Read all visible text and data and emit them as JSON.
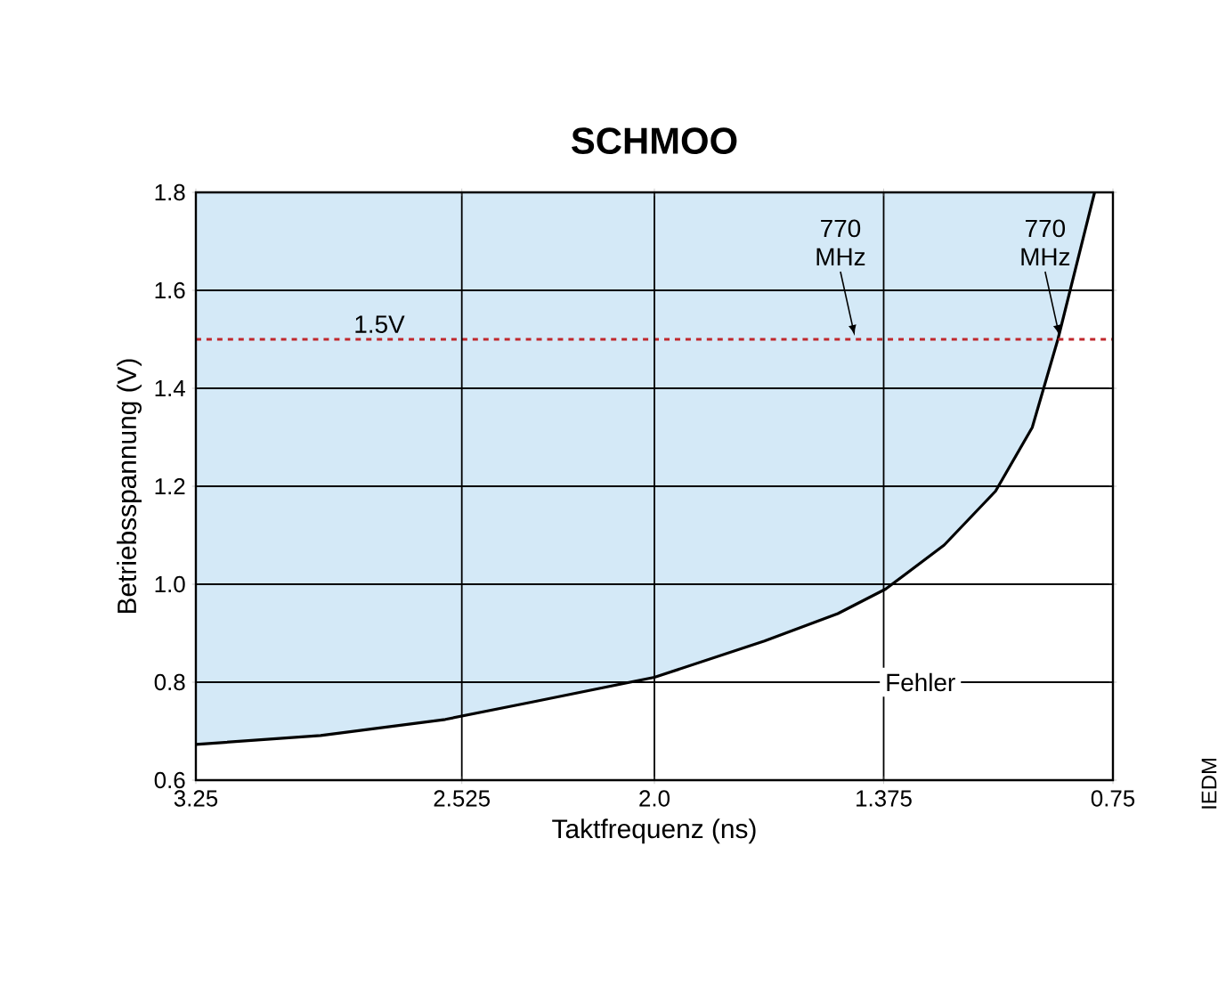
{
  "chart_data": {
    "type": "line",
    "title": "SCHMOO",
    "xlabel": "Taktfrequenz (ns)",
    "ylabel": "Betriebsspannung (V)",
    "x": [
      3.25,
      2.91,
      2.57,
      2.33,
      2.0,
      1.7,
      1.5,
      1.37,
      1.21,
      1.07,
      0.97,
      0.9,
      0.85,
      0.8
    ],
    "series": [
      {
        "color": "#000000",
        "values": [
          0.673,
          0.691,
          0.724,
          0.76,
          0.81,
          0.884,
          0.94,
          0.99,
          1.08,
          1.19,
          1.32,
          1.5,
          1.65,
          1.8
        ],
        "lower": [
          0.673,
          0.691,
          0.724,
          0.76,
          0.81,
          0.884,
          0.94,
          0.99,
          1.08,
          1.19,
          1.32,
          1.5,
          1.65,
          1.8
        ],
        "upper": [
          1.8,
          1.8,
          1.8,
          1.8,
          1.8,
          1.8,
          1.8,
          1.8,
          1.8,
          1.8,
          1.8,
          1.8,
          1.8,
          1.8
        ]
      }
    ],
    "xlim": [
      3.25,
      0.75
    ],
    "xticks": [
      3.25,
      2.525,
      {
        "value": 2,
        "label": "2.0"
      },
      1.375,
      0.75
    ],
    "ylim": [
      0.6,
      1.8
    ],
    "yticks": [
      0.6,
      0.8,
      {
        "value": 1,
        "label": "1.0"
      },
      1.2,
      1.4,
      1.6,
      1.8
    ],
    "grid": true,
    "ref_lines": [
      {
        "axis": "y",
        "value": 1.5,
        "label": "1.5V",
        "color": "#c0282d",
        "line_style": "dashed"
      }
    ],
    "annotations": [
      "Fehler",
      {
        "text": "770 MHz",
        "x": 1.454,
        "y": 1.5
      },
      {
        "text": "770 MHz",
        "x": 0.896,
        "y": 1.5
      },
      "IEDM"
    ]
  }
}
